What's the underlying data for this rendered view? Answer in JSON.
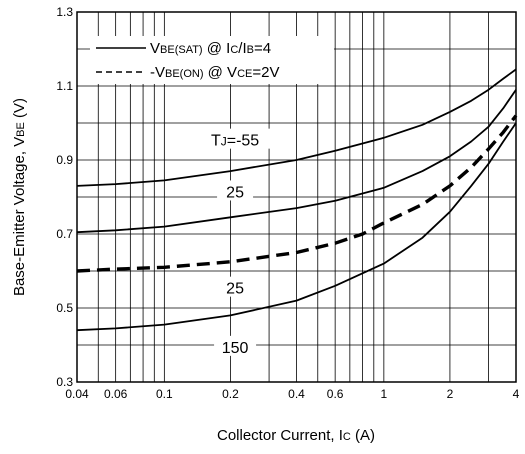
{
  "chart_data": {
    "type": "line",
    "xlabel": {
      "main": "Collector Current, I",
      "sub": "C",
      "unit": " (A)"
    },
    "ylabel": {
      "main": "Base-Emitter Voltage, V",
      "sub": "BE",
      "unit": " (V)"
    },
    "xscale": "log",
    "xlim": [
      0.04,
      4
    ],
    "ylim": [
      0.3,
      1.3
    ],
    "grid": true,
    "x_ticks": [
      0.04,
      0.06,
      0.1,
      0.2,
      0.4,
      0.6,
      1,
      2,
      4
    ],
    "x_tick_labels": [
      "0.04",
      "0.06",
      "0.1",
      "0.2",
      "0.4",
      "0.6",
      "1",
      "2",
      "4"
    ],
    "y_ticks": [
      0.3,
      0.5,
      0.7,
      0.9,
      1.1,
      1.3
    ],
    "y_tick_labels": [
      "0.3",
      "0.5",
      "0.7",
      "0.9",
      "1.1",
      "1.3"
    ],
    "legend": [
      {
        "style": "solid",
        "parts": [
          [
            "V",
            "n"
          ],
          [
            "BE(SAT)",
            "s"
          ],
          [
            " @ I",
            "n"
          ],
          [
            "C",
            "s"
          ],
          [
            "/I",
            "n"
          ],
          [
            "B",
            "s"
          ],
          [
            "=4",
            "n"
          ]
        ]
      },
      {
        "style": "dashed",
        "parts": [
          [
            "-V",
            "n"
          ],
          [
            "BE(ON)",
            "s"
          ],
          [
            " @ V",
            "n"
          ],
          [
            "CE",
            "s"
          ],
          [
            "=2V",
            "n"
          ]
        ]
      }
    ],
    "series": [
      {
        "label": [
          "T",
          "J",
          "=-55"
        ],
        "style": "solid",
        "x": [
          0.04,
          0.06,
          0.1,
          0.2,
          0.4,
          0.6,
          1,
          1.5,
          2,
          2.5,
          3,
          3.5,
          4
        ],
        "y": [
          0.83,
          0.835,
          0.845,
          0.87,
          0.9,
          0.925,
          0.96,
          0.995,
          1.03,
          1.06,
          1.09,
          1.12,
          1.145
        ]
      },
      {
        "label": [
          "25"
        ],
        "style": "solid",
        "x": [
          0.04,
          0.06,
          0.1,
          0.2,
          0.4,
          0.6,
          1,
          1.5,
          2,
          2.5,
          3,
          3.5,
          4
        ],
        "y": [
          0.705,
          0.71,
          0.72,
          0.745,
          0.77,
          0.79,
          0.825,
          0.87,
          0.91,
          0.95,
          0.99,
          1.04,
          1.09
        ]
      },
      {
        "label": [
          "25"
        ],
        "style": "dashed",
        "x": [
          0.04,
          0.06,
          0.1,
          0.2,
          0.4,
          0.6,
          0.8,
          1,
          1.5,
          2,
          2.5,
          3,
          3.5,
          4
        ],
        "y": [
          0.6,
          0.605,
          0.61,
          0.625,
          0.65,
          0.675,
          0.7,
          0.73,
          0.78,
          0.83,
          0.88,
          0.93,
          0.975,
          1.02
        ]
      },
      {
        "label": [
          "150"
        ],
        "style": "solid",
        "x": [
          0.04,
          0.06,
          0.1,
          0.2,
          0.4,
          0.6,
          1,
          1.5,
          2,
          2.5,
          3,
          3.5,
          4
        ],
        "y": [
          0.44,
          0.445,
          0.455,
          0.48,
          0.52,
          0.56,
          0.62,
          0.69,
          0.76,
          0.83,
          0.89,
          0.95,
          1.0
        ]
      }
    ]
  }
}
